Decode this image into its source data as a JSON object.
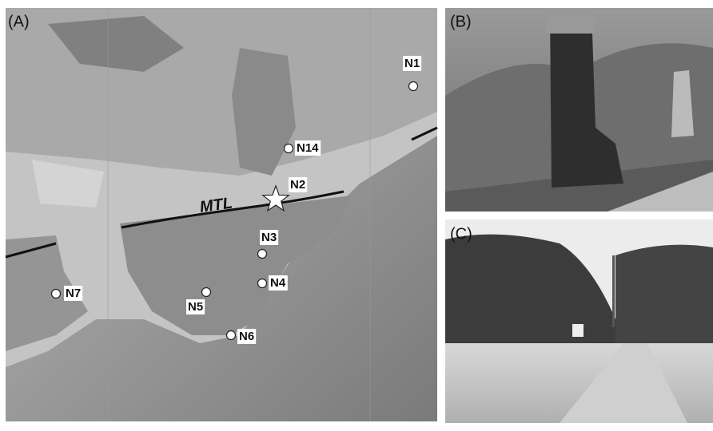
{
  "panels": {
    "a": {
      "label": "(A)"
    },
    "b": {
      "label": "(B)"
    },
    "c": {
      "label": "(C)"
    }
  },
  "map": {
    "fault_label": "MTL",
    "stations": [
      {
        "label": "N1"
      },
      {
        "label": "N14"
      },
      {
        "label": "N2"
      },
      {
        "label": "N3"
      },
      {
        "label": "N4"
      },
      {
        "label": "N5"
      },
      {
        "label": "N6"
      },
      {
        "label": "N7"
      }
    ]
  }
}
